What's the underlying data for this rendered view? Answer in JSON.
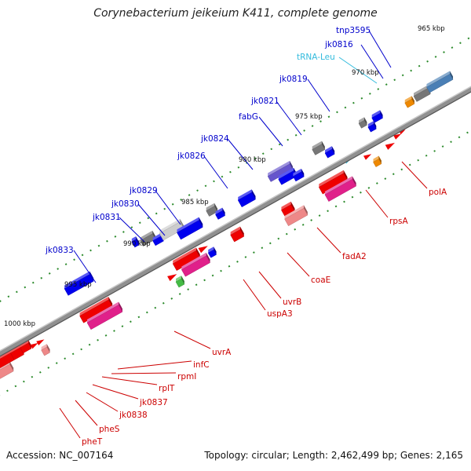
{
  "title": "Corynebacterium jeikeium K411, complete genome",
  "footer": {
    "accession": "Accession: NC_007164",
    "topology": "Topology: circular; Length: 2,462,499 bp; Genes: 2,165"
  },
  "colors": {
    "backbone": "#909090",
    "label_top": "#0000cc",
    "label_bottom": "#cc0000",
    "label_trna": "#33bbdd",
    "tick": "#2b8a2b",
    "gene_blue": "#0000ee",
    "gene_gray": "#777777",
    "gene_red": "#ee0000",
    "gene_magenta": "#e0208a",
    "gene_salmon": "#ee8888",
    "gene_purple": "#6655cc",
    "gene_orange": "#ee8800",
    "gene_green": "#44bb44",
    "gene_steel": "#4a7fb5"
  },
  "kbp_labels": [
    "965 kbp",
    "970 kbp",
    "975 kbp",
    "980 kbp",
    "985 kbp",
    "990 kbp",
    "995 kbp",
    "1000 kbp"
  ],
  "upper_labels": [
    "tnp3595",
    "jk0816",
    "tRNA-Leu",
    "jk0819",
    "jk0821",
    "fabG",
    "jk0824",
    "jk0826",
    "jk0829",
    "jk0830",
    "jk0831",
    "jk0833"
  ],
  "lower_labels": [
    "polA",
    "rpsA",
    "fadA2",
    "coaE",
    "uvrB",
    "uspA3",
    "uvrA",
    "infC",
    "rpmI",
    "rplT",
    "jk0837",
    "jk0838",
    "pheS",
    "pheT"
  ]
}
